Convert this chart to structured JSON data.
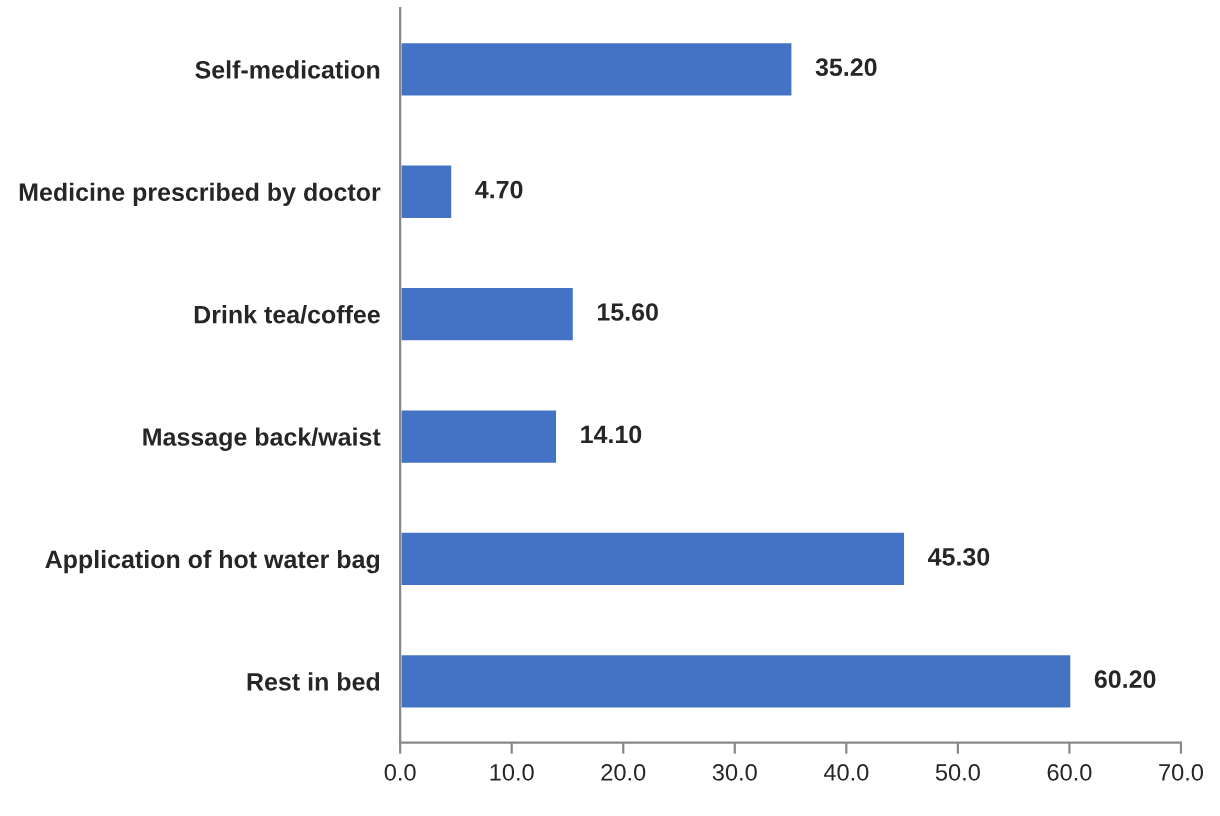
{
  "chart_data": {
    "type": "bar",
    "orientation": "horizontal",
    "categories": [
      "Self-medication",
      "Medicine prescribed by doctor",
      "Drink tea/coffee",
      "Massage back/waist",
      "Application of hot water bag",
      "Rest in bed"
    ],
    "values": [
      35.2,
      4.7,
      15.6,
      14.1,
      45.3,
      60.2
    ],
    "value_labels": [
      "35.20",
      "4.70",
      "15.60",
      "14.10",
      "45.30",
      "60.20"
    ],
    "color": "#4472c4",
    "xlim": [
      0,
      70
    ],
    "xticks": [
      {
        "value": 0,
        "label": "0.0"
      },
      {
        "value": 10,
        "label": "10.0"
      },
      {
        "value": 20,
        "label": "20.0"
      },
      {
        "value": 30,
        "label": "30.0"
      },
      {
        "value": 40,
        "label": "40.0"
      },
      {
        "value": 50,
        "label": "50.0"
      },
      {
        "value": 60,
        "label": "60.0"
      },
      {
        "value": 70,
        "label": "70.0"
      }
    ],
    "grid": false,
    "legend": false
  }
}
